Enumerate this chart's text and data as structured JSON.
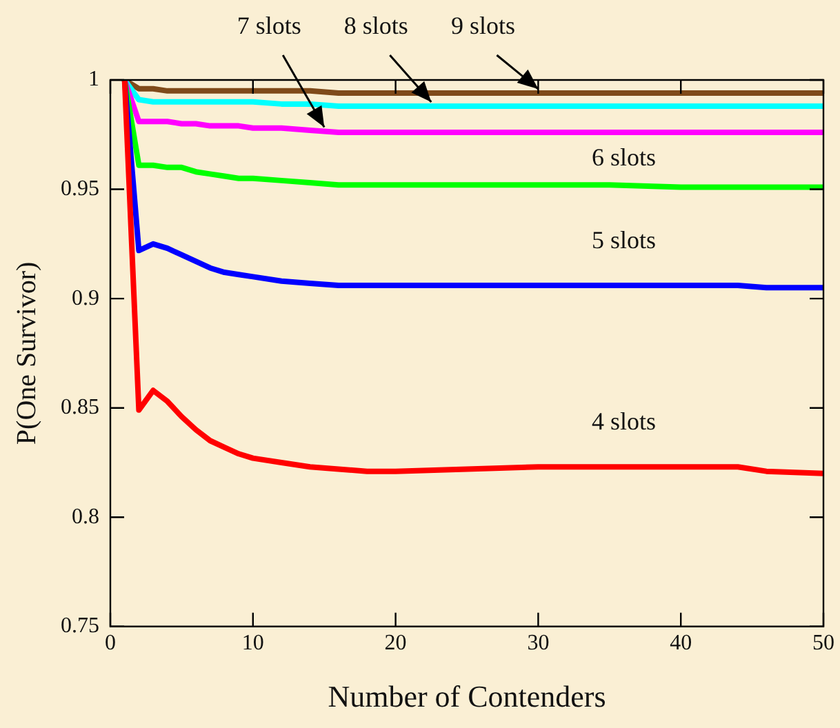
{
  "chart_data": {
    "type": "line",
    "xlabel": "Number of Contenders",
    "ylabel": "P(One Survivor)",
    "x": [
      1,
      2,
      3,
      4,
      5,
      6,
      7,
      8,
      9,
      10,
      12,
      14,
      16,
      18,
      20,
      25,
      30,
      35,
      40,
      44,
      46,
      50
    ],
    "series": [
      {
        "name": "4 slots",
        "color": "#ff0000",
        "values": [
          1,
          0.849,
          0.858,
          0.853,
          0.846,
          0.84,
          0.835,
          0.832,
          0.829,
          0.827,
          0.825,
          0.823,
          0.822,
          0.821,
          0.821,
          0.822,
          0.823,
          0.823,
          0.823,
          0.823,
          0.821,
          0.82
        ]
      },
      {
        "name": "5 slots",
        "color": "#0000ff",
        "values": [
          1,
          0.922,
          0.925,
          0.923,
          0.92,
          0.917,
          0.914,
          0.912,
          0.911,
          0.91,
          0.908,
          0.907,
          0.906,
          0.906,
          0.906,
          0.906,
          0.906,
          0.906,
          0.906,
          0.906,
          0.905,
          0.905
        ]
      },
      {
        "name": "6 slots",
        "color": "#00ff00",
        "values": [
          1,
          0.961,
          0.961,
          0.96,
          0.96,
          0.958,
          0.957,
          0.956,
          0.955,
          0.955,
          0.954,
          0.953,
          0.952,
          0.952,
          0.952,
          0.952,
          0.952,
          0.952,
          0.951,
          0.951,
          0.951,
          0.951
        ]
      },
      {
        "name": "7 slots",
        "color": "#ff00ff",
        "values": [
          1,
          0.981,
          0.981,
          0.981,
          0.98,
          0.98,
          0.979,
          0.979,
          0.979,
          0.978,
          0.978,
          0.977,
          0.976,
          0.976,
          0.976,
          0.976,
          0.976,
          0.976,
          0.976,
          0.976,
          0.976,
          0.976
        ]
      },
      {
        "name": "8 slots",
        "color": "#00ffff",
        "values": [
          1,
          0.991,
          0.99,
          0.99,
          0.99,
          0.99,
          0.99,
          0.99,
          0.99,
          0.99,
          0.989,
          0.989,
          0.988,
          0.988,
          0.988,
          0.988,
          0.988,
          0.988,
          0.988,
          0.988,
          0.988,
          0.988
        ]
      },
      {
        "name": "9 slots",
        "color": "#7f4a1a",
        "values": [
          1,
          0.996,
          0.996,
          0.995,
          0.995,
          0.995,
          0.995,
          0.995,
          0.995,
          0.995,
          0.995,
          0.995,
          0.994,
          0.994,
          0.994,
          0.994,
          0.994,
          0.994,
          0.994,
          0.994,
          0.994,
          0.994
        ]
      }
    ],
    "xlim": [
      0,
      50
    ],
    "xticks": [
      0,
      10,
      20,
      30,
      40,
      50
    ],
    "ylim": [
      0.75,
      1
    ],
    "yticks": [
      0.75,
      0.8,
      0.85,
      0.9,
      0.95,
      1
    ],
    "grid": false,
    "legend": false,
    "marker": "none",
    "line_style": "solid"
  }
}
